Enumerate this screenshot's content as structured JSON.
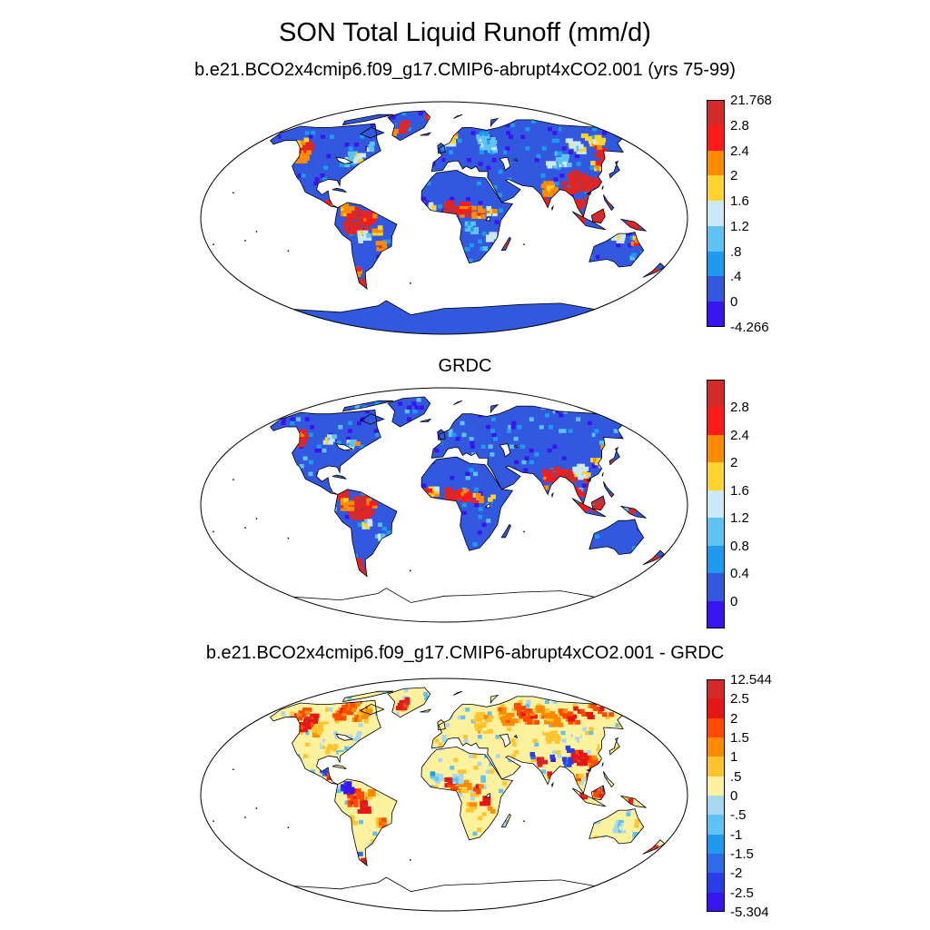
{
  "title": "SON Total Liquid Runoff (mm/d)",
  "panels": [
    {
      "id": "model",
      "subtitle": "b.e21.BCO2x4cmip6.f09_g17.CMIP6-abrupt4xCO2.001 (yrs 75-99)",
      "colorbar": {
        "colors": [
          "#d62a2a",
          "#ff1a1a",
          "#ff8c00",
          "#ffd330",
          "#cde9f7",
          "#5ec3f2",
          "#1e9bf0",
          "#3358e0",
          "#3a14f0"
        ],
        "labels": [
          "21.768",
          "2.8",
          "2.4",
          "2",
          "1.6",
          "1.2",
          ".8",
          ".4",
          "0",
          "-4.266"
        ]
      }
    },
    {
      "id": "grdc",
      "subtitle": "GRDC",
      "colorbar": {
        "colors": [
          "#d62a2a",
          "#ff1a1a",
          "#ff8c00",
          "#ffd330",
          "#cde9f7",
          "#5ec3f2",
          "#1e9bf0",
          "#3358e0",
          "#3a14f0"
        ],
        "labels": [
          "2.8",
          "2.4",
          "2",
          "1.6",
          "1.2",
          "0.8",
          "0.4",
          "0"
        ]
      }
    },
    {
      "id": "diff",
      "subtitle": "b.e21.BCO2x4cmip6.f09_g17.CMIP6-abrupt4xCO2.001 - GRDC",
      "colorbar": {
        "colors": [
          "#d62a2a",
          "#e61616",
          "#ff4a00",
          "#ff8c00",
          "#ffc42e",
          "#fff29e",
          "#a8d8f0",
          "#5ec3f2",
          "#1e9bf0",
          "#2f6ae8",
          "#2a3ee8",
          "#3a14f0"
        ],
        "labels": [
          "12.544",
          "2.5",
          "2",
          "1.5",
          "1",
          ".5",
          "0",
          "-.5",
          "-1",
          "-1.5",
          "-2",
          "-2.5",
          "-5.304"
        ]
      }
    }
  ]
}
